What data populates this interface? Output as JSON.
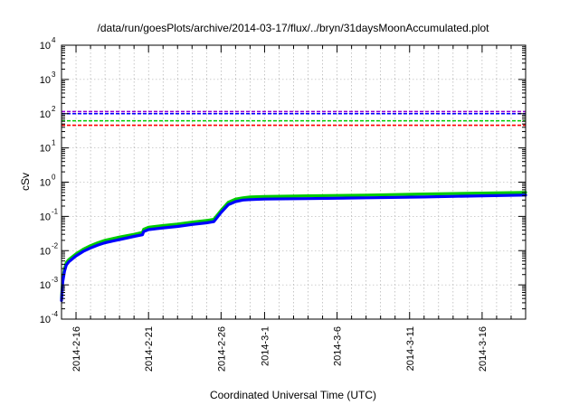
{
  "chart_data": {
    "type": "line",
    "title": "/data/run/goesPlots/archive/2014-03-17/flux/../bryn/31daysMoonAccumulated.plot",
    "xlabel": "Coordinated Universal Time (UTC)",
    "ylabel": "cSv",
    "y_scale": "log",
    "ylim": [
      0.0001,
      10000
    ],
    "xlim": [
      "2014-02-15",
      "2014-03-19"
    ],
    "grid": true,
    "x_tick_labels": [
      "2014-2-16",
      "2014-2-21",
      "2014-2-26",
      "2014-3-1",
      "2014-3-6",
      "2014-3-11",
      "2014-3-16"
    ],
    "x_ticks": [
      "2014-02-16",
      "2014-02-21",
      "2014-02-26",
      "2014-03-01",
      "2014-03-06",
      "2014-03-11",
      "2014-03-16"
    ],
    "x_minor_ticks": [
      "2014-02-15",
      "2014-02-17",
      "2014-02-18",
      "2014-02-19",
      "2014-02-20",
      "2014-02-22",
      "2014-02-23",
      "2014-02-24",
      "2014-02-25",
      "2014-02-27",
      "2014-02-28",
      "2014-03-02",
      "2014-03-03",
      "2014-03-04",
      "2014-03-05",
      "2014-03-07",
      "2014-03-08",
      "2014-03-09",
      "2014-03-10",
      "2014-03-12",
      "2014-03-13",
      "2014-03-14",
      "2014-03-15",
      "2014-03-17",
      "2014-03-18"
    ],
    "y_ticks": [
      {
        "value": 0.0001,
        "base": "10",
        "exp": "-4"
      },
      {
        "value": 0.001,
        "base": "10",
        "exp": "-3"
      },
      {
        "value": 0.01,
        "base": "10",
        "exp": "-2"
      },
      {
        "value": 0.1,
        "base": "10",
        "exp": "-1"
      },
      {
        "value": 1,
        "base": "10",
        "exp": "0"
      },
      {
        "value": 10,
        "base": "10",
        "exp": "1"
      },
      {
        "value": 100,
        "base": "10",
        "exp": "2"
      },
      {
        "value": 1000,
        "base": "10",
        "exp": "3"
      },
      {
        "value": 10000,
        "base": "10",
        "exp": "4"
      }
    ],
    "reference_lines": [
      {
        "value": 115,
        "color": "#9400d3"
      },
      {
        "value": 100,
        "color": "#0000ff"
      },
      {
        "value": 62,
        "color": "#00cc00"
      },
      {
        "value": 46,
        "color": "#ff0000"
      }
    ],
    "series": [
      {
        "color": "#00cc00",
        "x": [
          "2014-02-15T00:00",
          "2014-02-15T02:00",
          "2014-02-15T05:00",
          "2014-02-15T08:00",
          "2014-02-15T12:00",
          "2014-02-16T00:00",
          "2014-02-16T12:00",
          "2014-02-17T00:00",
          "2014-02-17T12:00",
          "2014-02-18T00:00",
          "2014-02-19T00:00",
          "2014-02-20T00:00",
          "2014-02-20T14:00",
          "2014-02-20T16:00",
          "2014-02-21T00:00",
          "2014-02-22T00:00",
          "2014-02-23T00:00",
          "2014-02-24T00:00",
          "2014-02-25T00:00",
          "2014-02-25T12:00",
          "2014-02-26T00:00",
          "2014-02-26T12:00",
          "2014-02-27T00:00",
          "2014-02-27T12:00",
          "2014-02-28T00:00",
          "2014-03-01T00:00",
          "2014-03-04T00:00",
          "2014-03-08T00:00",
          "2014-03-12T00:00",
          "2014-03-16T00:00",
          "2014-03-19T00:00"
        ],
        "y": [
          0.0004,
          0.0015,
          0.003,
          0.0045,
          0.0055,
          0.008,
          0.011,
          0.014,
          0.017,
          0.02,
          0.025,
          0.03,
          0.034,
          0.042,
          0.048,
          0.054,
          0.06,
          0.068,
          0.076,
          0.082,
          0.15,
          0.26,
          0.32,
          0.35,
          0.37,
          0.38,
          0.4,
          0.42,
          0.45,
          0.48,
          0.5
        ]
      },
      {
        "color": "#0000ff",
        "x": [
          "2014-02-15T00:00",
          "2014-02-15T02:00",
          "2014-02-15T05:00",
          "2014-02-15T08:00",
          "2014-02-15T12:00",
          "2014-02-16T00:00",
          "2014-02-16T12:00",
          "2014-02-17T00:00",
          "2014-02-17T12:00",
          "2014-02-18T00:00",
          "2014-02-19T00:00",
          "2014-02-20T00:00",
          "2014-02-20T14:00",
          "2014-02-20T16:00",
          "2014-02-21T00:00",
          "2014-02-22T00:00",
          "2014-02-23T00:00",
          "2014-02-24T00:00",
          "2014-02-25T00:00",
          "2014-02-25T12:00",
          "2014-02-26T00:00",
          "2014-02-26T12:00",
          "2014-02-27T00:00",
          "2014-02-27T12:00",
          "2014-02-28T00:00",
          "2014-03-01T00:00",
          "2014-03-04T00:00",
          "2014-03-08T00:00",
          "2014-03-12T00:00",
          "2014-03-16T00:00",
          "2014-03-19T00:00"
        ],
        "y": [
          0.00035,
          0.0012,
          0.0025,
          0.0038,
          0.0047,
          0.007,
          0.0095,
          0.012,
          0.0145,
          0.017,
          0.021,
          0.026,
          0.029,
          0.036,
          0.041,
          0.046,
          0.051,
          0.058,
          0.065,
          0.07,
          0.13,
          0.22,
          0.27,
          0.3,
          0.31,
          0.32,
          0.33,
          0.35,
          0.37,
          0.4,
          0.42
        ]
      }
    ]
  }
}
